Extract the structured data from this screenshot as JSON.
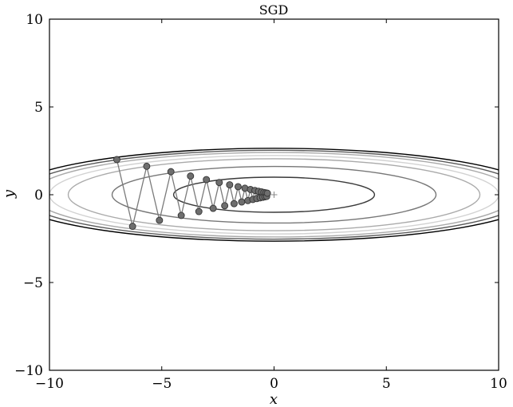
{
  "chart_data": {
    "type": "line",
    "title": "SGD",
    "xlabel": "x",
    "ylabel": "y",
    "xlim": [
      -10,
      10
    ],
    "ylim": [
      -10,
      10
    ],
    "xticks": [
      -10,
      -5,
      0,
      5,
      10
    ],
    "yticks": [
      -10,
      -5,
      0,
      5,
      10
    ],
    "xtick_labels": [
      "−10",
      "−5",
      "0",
      "5",
      "10"
    ],
    "ytick_labels": [
      "−10",
      "−5",
      "0",
      "5",
      "10"
    ],
    "grid": false,
    "contour_function": "x^2/20 + y^2",
    "contour_levels": [
      {
        "level": 1,
        "color": "#3a3a3a"
      },
      {
        "level": 2.6,
        "color": "#777777"
      },
      {
        "level": 4.2,
        "color": "#aaaaaa"
      },
      {
        "level": 5.0,
        "color": "#d2d2d2"
      },
      {
        "level": 5.8,
        "color": "#aaaaaa"
      },
      {
        "level": 6.4,
        "color": "#5a5a5a"
      },
      {
        "level": 7.0,
        "color": "#000000"
      }
    ],
    "minimum_marker": {
      "x": 0,
      "y": 0,
      "symbol": "+"
    },
    "path_color": "#7a7a7a",
    "marker_fill": "#6e6e6e",
    "marker_edge": "#333333",
    "series": [
      {
        "x": [
          -7.0,
          -6.3,
          -5.67,
          -5.103,
          -4.593,
          -4.133,
          -3.72,
          -3.348,
          -3.013,
          -2.712,
          -2.441,
          -2.197,
          -1.977,
          -1.779,
          -1.601,
          -1.441,
          -1.297,
          -1.167,
          -1.051,
          -0.946,
          -0.851,
          -0.766,
          -0.689,
          -0.62,
          -0.558,
          -0.503,
          -0.452,
          -0.407,
          -0.366,
          -0.33,
          -0.297
        ],
        "y": [
          2.0,
          -1.8,
          1.62,
          -1.458,
          1.312,
          -1.181,
          1.063,
          -0.957,
          0.861,
          -0.775,
          0.697,
          -0.628,
          0.565,
          -0.508,
          0.458,
          -0.412,
          0.371,
          -0.334,
          0.3,
          -0.27,
          0.243,
          -0.219,
          0.197,
          -0.177,
          0.16,
          -0.144,
          0.129,
          -0.116,
          0.105,
          -0.094,
          0.085
        ]
      }
    ]
  }
}
